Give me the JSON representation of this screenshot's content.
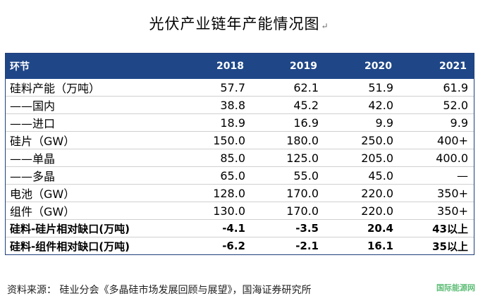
{
  "title": "光伏产业链年产能情况图",
  "title_mark": "↵",
  "table": {
    "headers": [
      "环节",
      "2018",
      "2019",
      "2020",
      "2021"
    ],
    "rows": [
      {
        "label": "硅料产能（万吨）",
        "v": [
          "57.7",
          "62.1",
          "51.9",
          "61.9"
        ]
      },
      {
        "label": "——国内",
        "v": [
          "38.8",
          "45.2",
          "42.0",
          "52.0"
        ]
      },
      {
        "label": "——进口",
        "v": [
          "18.9",
          "16.9",
          "9.9",
          "9.9"
        ]
      },
      {
        "label": "硅片（GW）",
        "v": [
          "150.0",
          "180.0",
          "250.0",
          "400+"
        ]
      },
      {
        "label": "——单晶",
        "v": [
          "85.0",
          "125.0",
          "205.0",
          "400.0"
        ]
      },
      {
        "label": "——多晶",
        "v": [
          "65.0",
          "55.0",
          "45.0",
          "—"
        ]
      },
      {
        "label": "电池（GW）",
        "v": [
          "128.0",
          "170.0",
          "220.0",
          "350+"
        ]
      },
      {
        "label": "组件（GW）",
        "v": [
          "130.0",
          "170.0",
          "220.0",
          "350+"
        ]
      },
      {
        "label": "硅料-硅片相对缺口(万吨)",
        "v": [
          "-4.1",
          "-3.5",
          "20.4",
          "43以上"
        ]
      },
      {
        "label": "硅料-组件相对缺口(万吨)",
        "v": [
          "-6.2",
          "-2.1",
          "16.1",
          "35以上"
        ]
      }
    ]
  },
  "source": "资料来源：   硅业分会《多晶硅市场发展回顾与展望》，国海证券研究所",
  "watermark": "国际能源网"
}
